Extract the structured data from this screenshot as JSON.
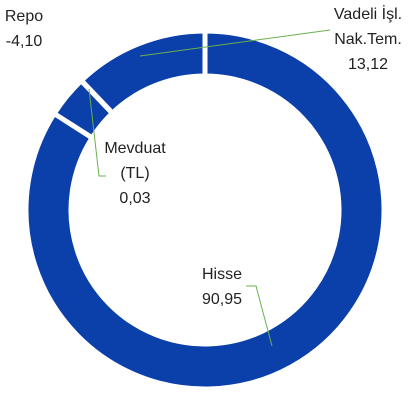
{
  "chart_data": {
    "type": "donut",
    "categories": [
      "Hisse",
      "Repo",
      "Mevduat (TL)",
      "Vadeli İşl. Nak.Tem."
    ],
    "values": [
      90.95,
      -4.1,
      0.03,
      13.12
    ],
    "value_labels": [
      "90,95",
      "-4,10",
      "0,03",
      "13,12"
    ],
    "color": "#0b3fa9"
  }
}
